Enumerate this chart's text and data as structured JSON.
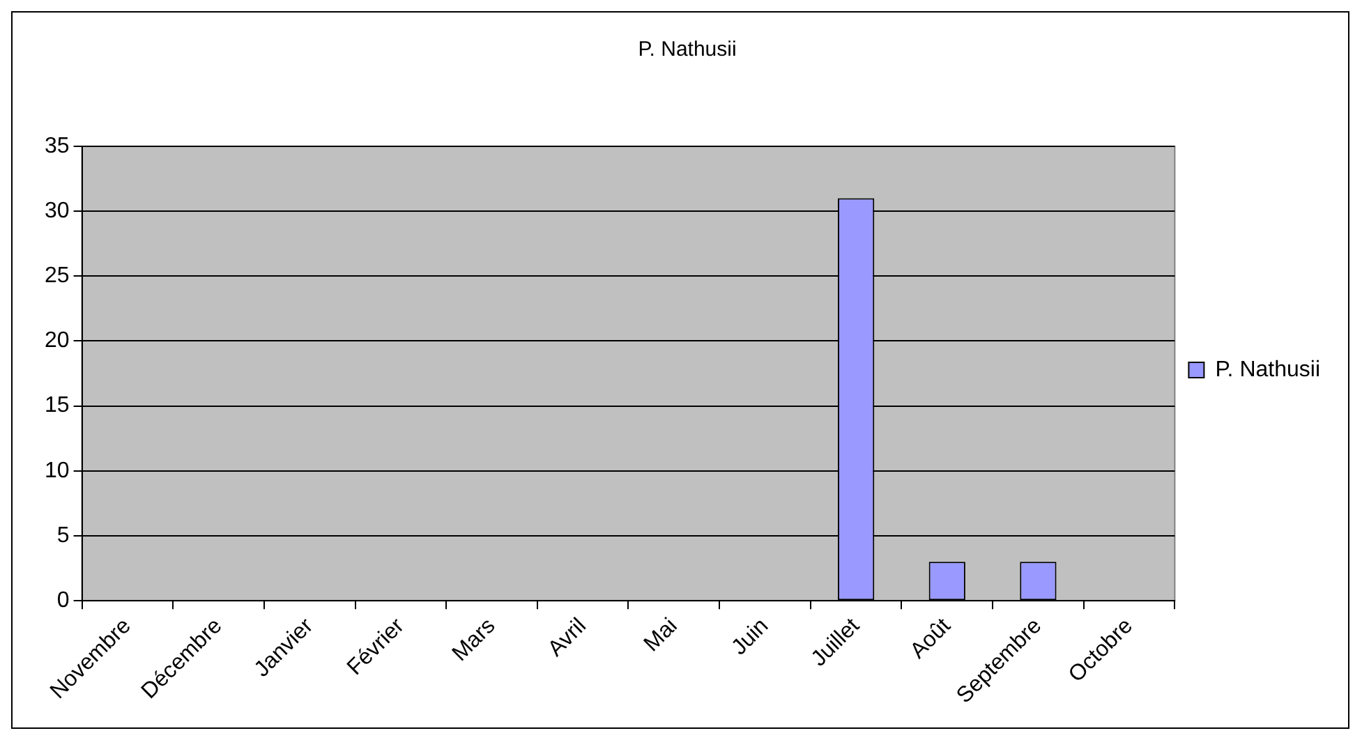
{
  "chart_data": {
    "type": "bar",
    "title": "P. Nathusii",
    "categories": [
      "Novembre",
      "Décembre",
      "Janvier",
      "Février",
      "Mars",
      "Avril",
      "Mai",
      "Juin",
      "Juillet",
      "Août",
      "Septembre",
      "Octobre"
    ],
    "series": [
      {
        "name": "P. Nathusii",
        "color": "#9999ff",
        "values": [
          0,
          0,
          0,
          0,
          0,
          0,
          0,
          0,
          31,
          3,
          3,
          0
        ]
      }
    ],
    "ylim": [
      0,
      35
    ],
    "yticks": [
      0,
      5,
      10,
      15,
      20,
      25,
      30,
      35
    ],
    "grid": "y",
    "legend": "right"
  }
}
